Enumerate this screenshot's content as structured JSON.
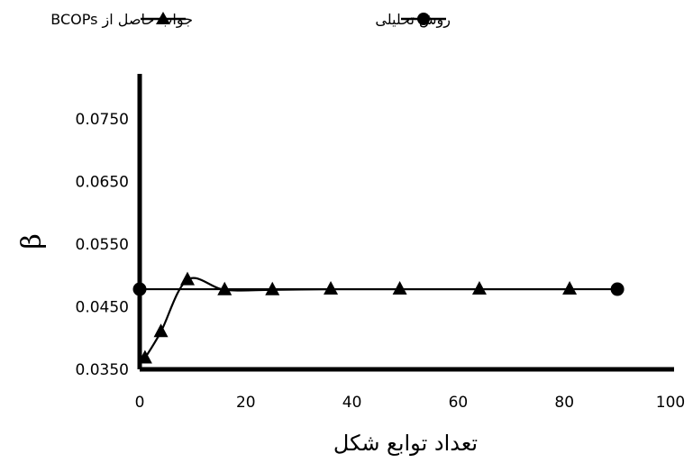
{
  "chart_data": {
    "type": "line",
    "title": "",
    "xlabel": "تعداد توابع شکل",
    "ylabel": "β",
    "xlim": [
      0,
      100
    ],
    "ylim": [
      0.035,
      0.08
    ],
    "x_ticks": [
      "0",
      "20",
      "40",
      "60",
      "80",
      "100"
    ],
    "y_ticks": [
      "0.0350",
      "0.0450",
      "0.0550",
      "0.0650",
      "0.0750"
    ],
    "grid": false,
    "legend_position": "top",
    "series": [
      {
        "name": "روش تحلیلی",
        "marker": "circle",
        "x": [
          0,
          90
        ],
        "y": [
          0.0478,
          0.0478
        ]
      },
      {
        "name": "جواب حاصل از BCOPs",
        "marker": "triangle",
        "x": [
          1,
          4,
          9,
          16,
          25,
          36,
          49,
          64,
          81
        ],
        "y": [
          0.0368,
          0.041,
          0.0493,
          0.0477,
          0.0477,
          0.0478,
          0.0478,
          0.0478,
          0.0478
        ]
      }
    ]
  },
  "colors": {
    "line": "#000000",
    "axis": "#000000"
  }
}
